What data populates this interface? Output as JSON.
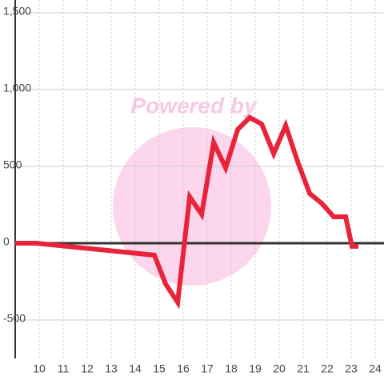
{
  "chart_data": {
    "type": "line",
    "watermark": "Powered by",
    "x": [
      9,
      9.87,
      14.8,
      15.27,
      15.77,
      16.27,
      16.77,
      17.27,
      17.77,
      18.27,
      18.77,
      19.27,
      19.77,
      20.27,
      20.77,
      21.27,
      21.77,
      22.27,
      22.77,
      23.03,
      23.3
    ],
    "series": [
      {
        "color": "#e8233a",
        "values": [
          0,
          0,
          -78,
          -266,
          -385,
          302,
          188,
          656,
          490,
          740,
          818,
          776,
          583,
          766,
          531,
          323,
          260,
          172,
          172,
          -20,
          -20
        ]
      }
    ],
    "xlim": [
      9,
      24.3
    ],
    "xticks": [
      10,
      11,
      12,
      13,
      14,
      15,
      16,
      17,
      18,
      19,
      20,
      21,
      22,
      23,
      24
    ],
    "ylim": [
      -750,
      1500
    ],
    "yticks": [
      -500,
      0,
      500,
      {
        "value": 1000,
        "label": "1,000"
      },
      {
        "value": 1500,
        "label": "1,500"
      }
    ],
    "grid": true
  }
}
